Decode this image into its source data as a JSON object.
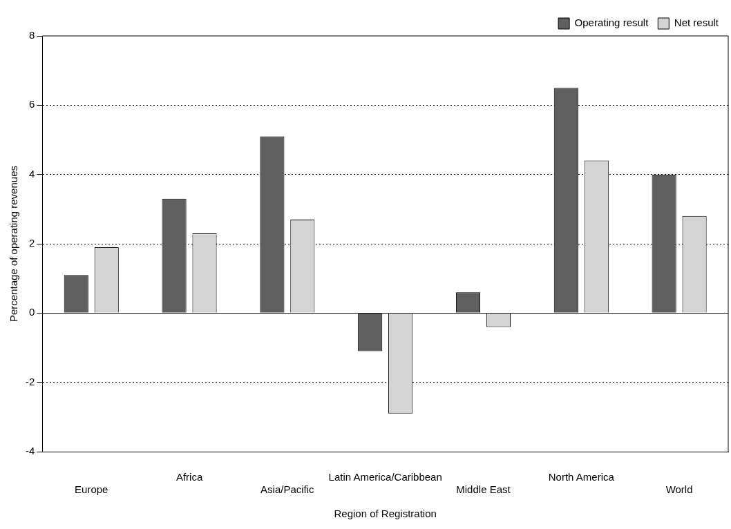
{
  "chart_data": {
    "type": "bar",
    "xlabel": "Region of Registration",
    "ylabel": "Percentage of operating revenues",
    "categories": [
      "Europe",
      "Africa",
      "Asia/Pacific",
      "Latin America/Caribbean",
      "Middle East",
      "North America",
      "World"
    ],
    "series": [
      {
        "name": "Operating result",
        "color": "#5f5f5f",
        "values": [
          1.1,
          3.3,
          5.1,
          -1.1,
          0.6,
          6.5,
          4.0
        ]
      },
      {
        "name": "Net result",
        "color": "#d4d4d4",
        "values": [
          1.9,
          2.3,
          2.7,
          -2.9,
          -0.4,
          4.4,
          2.8
        ]
      }
    ],
    "ylim": [
      -4,
      8
    ],
    "yticks": [
      -4,
      -2,
      0,
      2,
      4,
      6,
      8
    ],
    "grid": "y",
    "line_style": "dotted",
    "legend": "top right"
  }
}
